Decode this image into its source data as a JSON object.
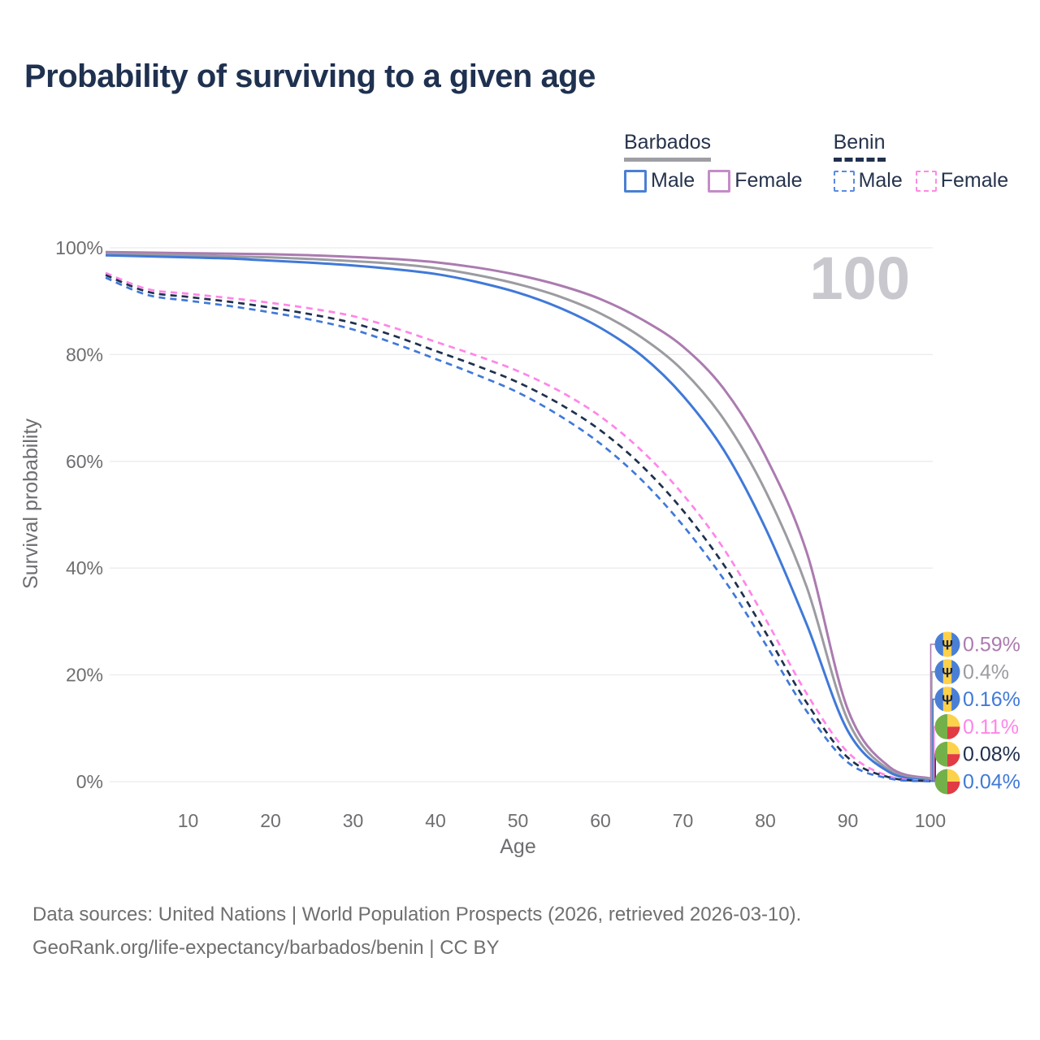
{
  "title": "Probability of surviving to a given age",
  "legend": {
    "groups": [
      {
        "label": "Barbados",
        "line_style": "solid",
        "underline_color": "#9e9ea4",
        "items": [
          {
            "label": "Male",
            "color": "#4a7fd4",
            "dashed": false
          },
          {
            "label": "Female",
            "color": "#c48cc8",
            "dashed": false
          }
        ]
      },
      {
        "label": "Benin",
        "line_style": "dashed",
        "underline_color": "#20304e",
        "items": [
          {
            "label": "Male",
            "color": "#5b8be0",
            "dashed": true
          },
          {
            "label": "Female",
            "color": "#ff8ae4",
            "dashed": true
          }
        ]
      }
    ]
  },
  "footer": {
    "line1": "Data sources: United Nations | World Population Prospects (2026, retrieved 2026-03-10).",
    "line2": "GeoRank.org/life-expectancy/barbados/benin | CC BY"
  },
  "colors": {
    "title": "#1f3150",
    "axis_text": "#6e6e72",
    "gridline": "#ebebee",
    "watermark": "#c8c8ce",
    "barbados_flag_blue": "#4a7fd4",
    "barbados_flag_yellow": "#ffd04a",
    "barbados_trident": "#17243f",
    "benin_flag_green": "#74b049",
    "benin_flag_yellow": "#fcd24c",
    "benin_flag_red": "#e13b44"
  },
  "chart_data": {
    "type": "line",
    "title": "Probability of surviving to a given age",
    "xlabel": "Age",
    "ylabel": "Survival probability",
    "xlim": [
      0,
      100
    ],
    "ylim": [
      0,
      100
    ],
    "grid": true,
    "age_indicator_watermark": "100",
    "x_ticks": [
      10,
      20,
      30,
      40,
      50,
      60,
      70,
      80,
      90,
      100
    ],
    "y_ticks": [
      {
        "value": 0,
        "label": "0%"
      },
      {
        "value": 20,
        "label": "20%"
      },
      {
        "value": 40,
        "label": "40%"
      },
      {
        "value": 60,
        "label": "60%"
      },
      {
        "value": 80,
        "label": "80%"
      },
      {
        "value": 100,
        "label": "100%"
      }
    ],
    "ages": [
      0,
      5,
      10,
      15,
      20,
      25,
      30,
      35,
      40,
      45,
      50,
      55,
      60,
      65,
      70,
      75,
      80,
      85,
      90,
      95,
      100
    ],
    "series": [
      {
        "name": "Barbados Female",
        "country": "Barbados",
        "sex": "Female",
        "color": "#ab7bb0",
        "dashed": false,
        "end_label": "0.59%",
        "end_value": 0.59,
        "values": [
          99.2,
          99.1,
          99.0,
          98.9,
          98.8,
          98.6,
          98.3,
          97.9,
          97.3,
          96.3,
          94.9,
          93.0,
          90.4,
          86.6,
          81.5,
          73.5,
          61.0,
          43.0,
          13.5,
          2.8,
          0.59
        ]
      },
      {
        "name": "Barbados",
        "country": "Barbados",
        "sex": "Both",
        "color": "#9b9ba1",
        "dashed": false,
        "end_label": "0.4%",
        "end_value": 0.4,
        "values": [
          98.9,
          98.8,
          98.6,
          98.4,
          98.2,
          97.9,
          97.5,
          97.0,
          96.2,
          94.9,
          93.2,
          90.9,
          87.7,
          83.2,
          77.0,
          67.8,
          54.5,
          36.5,
          11.5,
          2.2,
          0.4
        ]
      },
      {
        "name": "Barbados Male",
        "country": "Barbados",
        "sex": "Male",
        "color": "#4079d8",
        "dashed": false,
        "end_label": "0.16%",
        "end_value": 0.16,
        "values": [
          98.6,
          98.4,
          98.2,
          98.0,
          97.6,
          97.2,
          96.7,
          96.0,
          95.1,
          93.6,
          91.6,
          88.8,
          85.0,
          79.8,
          72.3,
          62.0,
          47.5,
          29.5,
          9.5,
          1.8,
          0.16
        ]
      },
      {
        "name": "Benin Female",
        "country": "Benin",
        "sex": "Female",
        "color": "#ff85e8",
        "dashed": true,
        "end_label": "0.11%",
        "end_value": 0.11,
        "values": [
          95.3,
          92.3,
          91.4,
          90.6,
          89.7,
          88.6,
          87.2,
          85.0,
          82.4,
          79.8,
          76.9,
          73.2,
          68.4,
          62.0,
          53.8,
          43.5,
          30.5,
          16.5,
          5.5,
          1.0,
          0.11
        ]
      },
      {
        "name": "Benin",
        "country": "Benin",
        "sex": "Both",
        "color": "#20304e",
        "dashed": true,
        "end_label": "0.08%",
        "end_value": 0.08,
        "values": [
          94.9,
          91.8,
          90.8,
          89.9,
          88.8,
          87.5,
          85.9,
          83.5,
          80.7,
          77.9,
          74.8,
          70.8,
          65.8,
          59.2,
          50.8,
          40.5,
          28.0,
          14.8,
          4.5,
          0.8,
          0.08
        ]
      },
      {
        "name": "Benin Male",
        "country": "Benin",
        "sex": "Male",
        "color": "#4079d8",
        "dashed": true,
        "end_label": "0.04%",
        "end_value": 0.04,
        "values": [
          94.4,
          91.2,
          90.1,
          89.1,
          87.9,
          86.5,
          84.7,
          82.1,
          79.2,
          76.2,
          72.9,
          68.6,
          63.3,
          56.5,
          48.0,
          37.8,
          25.8,
          13.2,
          3.6,
          0.6,
          0.04
        ]
      }
    ],
    "legend_position": "top-right"
  }
}
